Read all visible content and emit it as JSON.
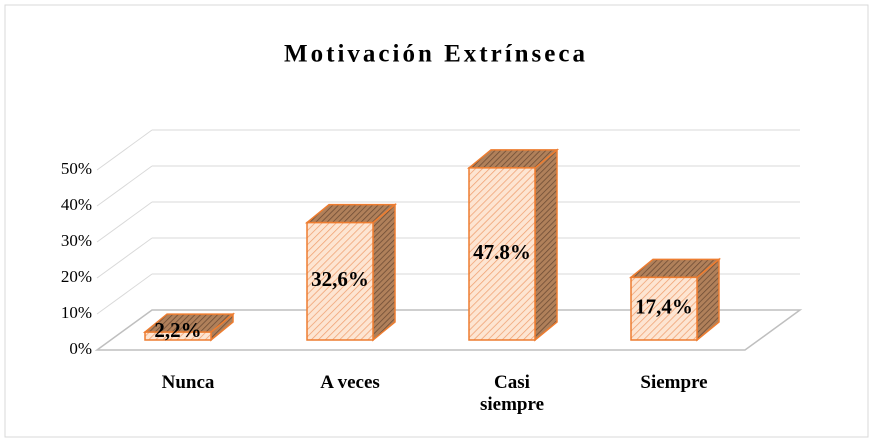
{
  "chart_data": {
    "type": "bar3d",
    "title": "Motivación Extrínseca",
    "categories": [
      "Nunca",
      "A veces",
      "Casi siempre",
      "Siempre"
    ],
    "values": [
      2.2,
      32.6,
      47.8,
      17.4
    ],
    "value_labels": [
      "2,2%",
      "32,6%",
      "47.8%",
      "17,4%"
    ],
    "color": "#ed7d31",
    "ylim": [
      0,
      50
    ],
    "yticks": [
      {
        "value": 0,
        "label": "0%"
      },
      {
        "value": 10,
        "label": "10%"
      },
      {
        "value": 20,
        "label": "20%"
      },
      {
        "value": 30,
        "label": "30%"
      },
      {
        "value": 40,
        "label": "40%"
      },
      {
        "value": 50,
        "label": "50%"
      }
    ],
    "grid": true
  }
}
